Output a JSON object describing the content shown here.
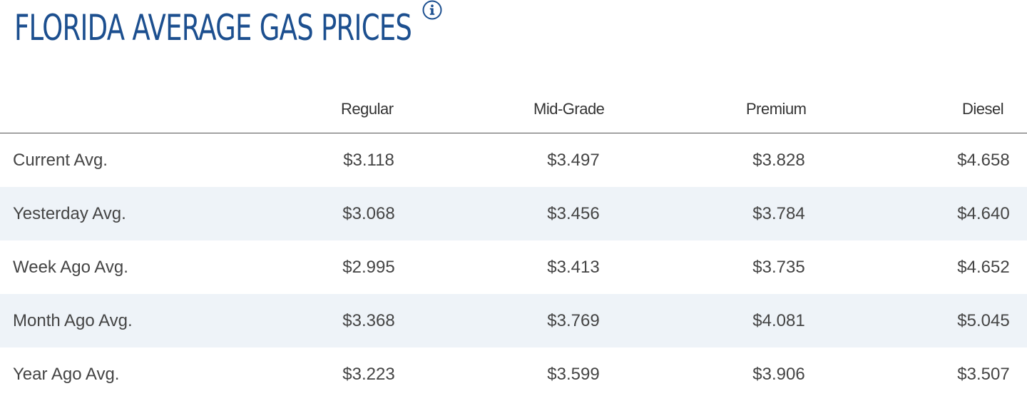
{
  "page": {
    "title": "FLORIDA AVERAGE GAS PRICES",
    "info_icon": "info-icon",
    "accent_color": "#1c4f8f",
    "shade_color": "#eef3f8"
  },
  "table": {
    "columns": [
      "Regular",
      "Mid-Grade",
      "Premium",
      "Diesel"
    ],
    "rows": [
      {
        "label": "Current Avg.",
        "values": [
          "$3.118",
          "$3.497",
          "$3.828",
          "$4.658"
        ]
      },
      {
        "label": "Yesterday Avg.",
        "values": [
          "$3.068",
          "$3.456",
          "$3.784",
          "$4.640"
        ]
      },
      {
        "label": "Week Ago Avg.",
        "values": [
          "$2.995",
          "$3.413",
          "$3.735",
          "$4.652"
        ]
      },
      {
        "label": "Month Ago Avg.",
        "values": [
          "$3.368",
          "$3.769",
          "$4.081",
          "$5.045"
        ]
      },
      {
        "label": "Year Ago Avg.",
        "values": [
          "$3.223",
          "$3.599",
          "$3.906",
          "$3.507"
        ]
      }
    ]
  }
}
